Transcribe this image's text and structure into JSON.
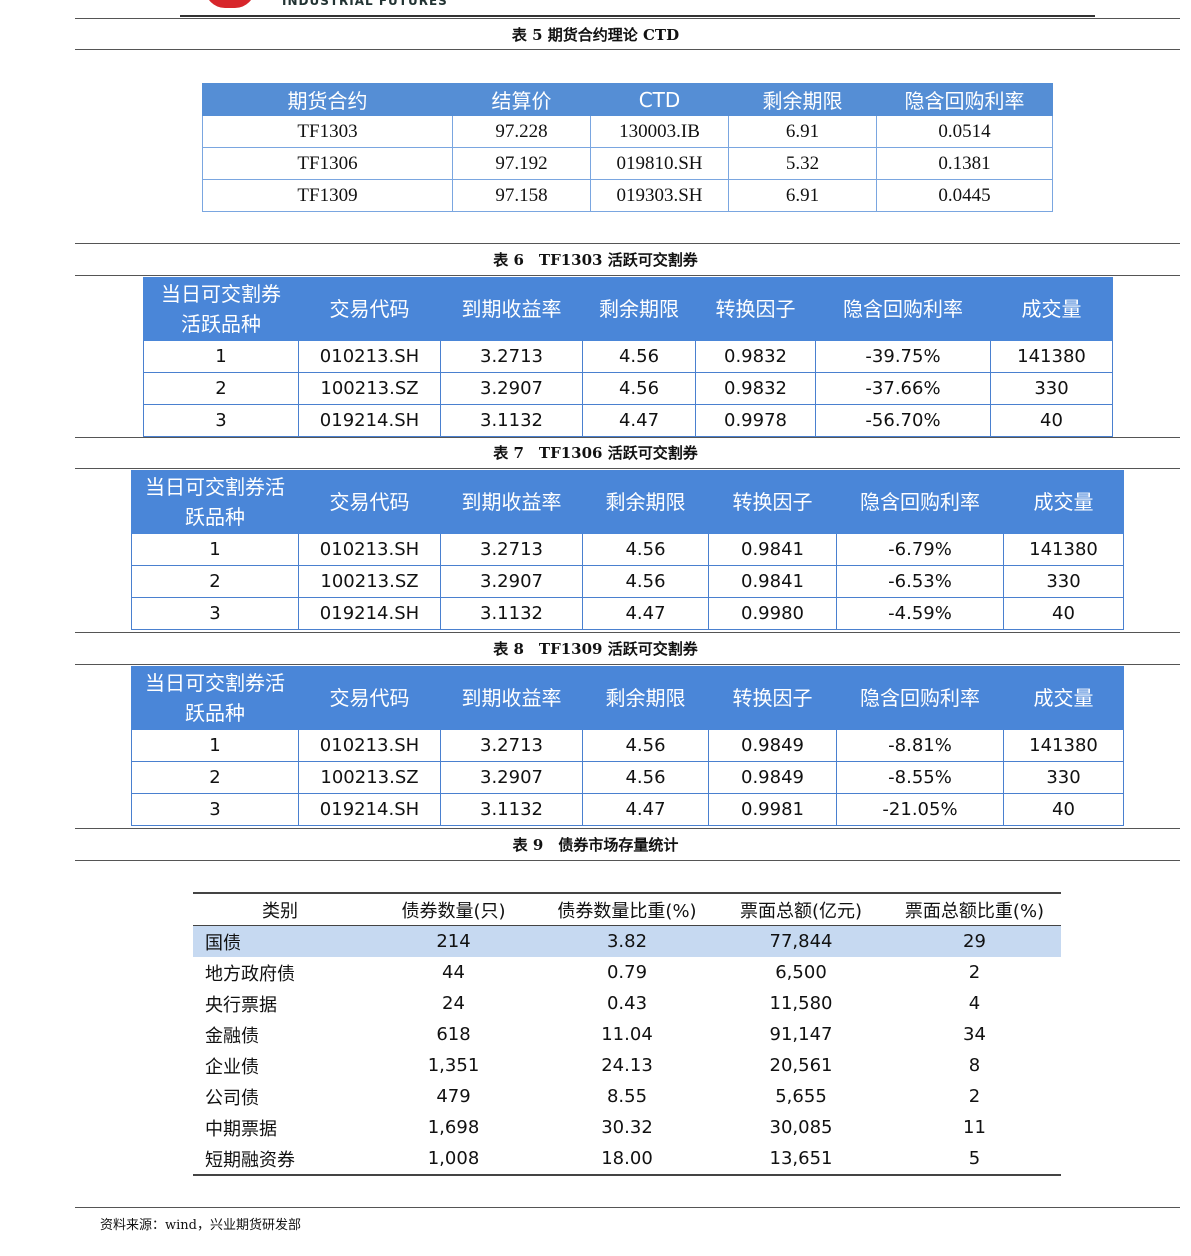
{
  "header": {
    "logo_text": "INDUSTRIAL FUTURES"
  },
  "tables": [
    {
      "id": "t5",
      "caption": "表 5 期货合约理论 CTD",
      "columns": [
        "期货合约",
        "结算价",
        "CTD",
        "剩余期限",
        "隐含回购利率"
      ],
      "rows": [
        [
          "TF1303",
          "97.228",
          "130003.IB",
          "6.91",
          "0.0514"
        ],
        [
          "TF1306",
          "97.192",
          "019810.SH",
          "5.32",
          "0.1381"
        ],
        [
          "TF1309",
          "97.158",
          "019303.SH",
          "6.91",
          "0.0445"
        ]
      ]
    },
    {
      "id": "t6",
      "caption": "表 6　TF1303 活跃可交割券",
      "columns": [
        "当日可交割券活跃品种",
        "交易代码",
        "到期收益率",
        "剩余期限",
        "转换因子",
        "隐含回购利率",
        "成交量"
      ],
      "rows": [
        [
          "1",
          "010213.SH",
          "3.2713",
          "4.56",
          "0.9832",
          "-39.75%",
          "141380"
        ],
        [
          "2",
          "100213.SZ",
          "3.2907",
          "4.56",
          "0.9832",
          "-37.66%",
          "330"
        ],
        [
          "3",
          "019214.SH",
          "3.1132",
          "4.47",
          "0.9978",
          "-56.70%",
          "40"
        ]
      ]
    },
    {
      "id": "t7",
      "caption": "表 7　TF1306 活跃可交割券",
      "columns": [
        "当日可交割券活跃品种",
        "交易代码",
        "到期收益率",
        "剩余期限",
        "转换因子",
        "隐含回购利率",
        "成交量"
      ],
      "rows": [
        [
          "1",
          "010213.SH",
          "3.2713",
          "4.56",
          "0.9841",
          "-6.79%",
          "141380"
        ],
        [
          "2",
          "100213.SZ",
          "3.2907",
          "4.56",
          "0.9841",
          "-6.53%",
          "330"
        ],
        [
          "3",
          "019214.SH",
          "3.1132",
          "4.47",
          "0.9980",
          "-4.59%",
          "40"
        ]
      ]
    },
    {
      "id": "t8",
      "caption": "表 8　TF1309 活跃可交割券",
      "columns": [
        "当日可交割券活跃品种",
        "交易代码",
        "到期收益率",
        "剩余期限",
        "转换因子",
        "隐含回购利率",
        "成交量"
      ],
      "rows": [
        [
          "1",
          "010213.SH",
          "3.2713",
          "4.56",
          "0.9849",
          "-8.81%",
          "141380"
        ],
        [
          "2",
          "100213.SZ",
          "3.2907",
          "4.56",
          "0.9849",
          "-8.55%",
          "330"
        ],
        [
          "3",
          "019214.SH",
          "3.1132",
          "4.47",
          "0.9981",
          "-21.05%",
          "40"
        ]
      ]
    },
    {
      "id": "t9",
      "caption": "表 9　债券市场存量统计",
      "columns": [
        "类别",
        "债券数量(只)",
        "债券数量比重(%)",
        "票面总额(亿元)",
        "票面总额比重(%)"
      ],
      "rows": [
        [
          "国债",
          "214",
          "3.82",
          "77,844",
          "29"
        ],
        [
          "地方政府债",
          "44",
          "0.79",
          "6,500",
          "2"
        ],
        [
          "央行票据",
          "24",
          "0.43",
          "11,580",
          "4"
        ],
        [
          "金融债",
          "618",
          "11.04",
          "91,147",
          "34"
        ],
        [
          "企业债",
          "1,351",
          "24.13",
          "20,561",
          "8"
        ],
        [
          "公司债",
          "479",
          "8.55",
          "5,655",
          "2"
        ],
        [
          "中期票据",
          "1,698",
          "30.32",
          "30,085",
          "11"
        ],
        [
          "短期融资券",
          "1,008",
          "18.00",
          "13,651",
          "5"
        ]
      ]
    }
  ],
  "footer": {
    "source": "资料来源：wind，兴业期货研发部"
  }
}
